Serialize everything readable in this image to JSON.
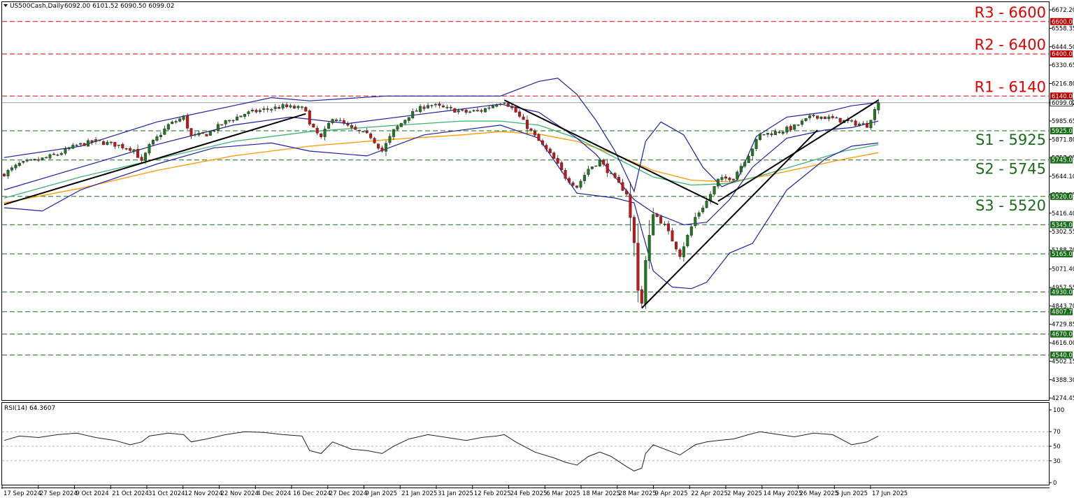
{
  "header": {
    "symbol": "US500Cash,Daily",
    "ohlc": "6092.00 6101.52 6090.50 6099.02"
  },
  "rsi_header": "RSI(14) 64.3607",
  "colors": {
    "resistance": "#e00000",
    "support": "#1a6b1a",
    "bollinger": "#1f1fa8",
    "ma_green": "#3cb371",
    "ma_orange": "#ff9900",
    "trendline": "#000000",
    "bull_candle": "#1e7a1e",
    "bear_candle": "#c81414",
    "price_tag": "#c00000"
  },
  "chart_data": [
    {
      "type": "candlestick",
      "title": "",
      "y_ticks": [
        "6672.20",
        "6558.35",
        "6444.50",
        "6330.65",
        "6216.80",
        "6099.02",
        "5985.65",
        "5871.80",
        "5757.95",
        "5644.10",
        "5530.25",
        "5416.40",
        "5302.55",
        "5188.70",
        "5071.40",
        "4957.55",
        "4843.70",
        "4729.85",
        "4616.00",
        "4502.15",
        "4388.30",
        "4274.45"
      ],
      "ylim": [
        4262,
        6720
      ],
      "x_ticks": [
        "17 Sep 2024",
        "27 Sep 2024",
        "9 Oct 2024",
        "21 Oct 2024",
        "31 Oct 2024",
        "12 Nov 2024",
        "22 Nov 2024",
        "4 Dec 2024",
        "16 Dec 2024",
        "27 Dec 2024",
        "9 Jan 2025",
        "21 Jan 2025",
        "31 Jan 2025",
        "12 Feb 2025",
        "24 Feb 2025",
        "6 Mar 2025",
        "18 Mar 2025",
        "28 Mar 2025",
        "9 Apr 2025",
        "22 Apr 2025",
        "2 May 2025",
        "14 May 2025",
        "26 May 2025",
        "5 Jun 2025",
        "17 Jun 2025"
      ],
      "price_path": [
        [
          0,
          5660
        ],
        [
          4,
          5720
        ],
        [
          9,
          5745
        ],
        [
          14,
          5780
        ],
        [
          19,
          5835
        ],
        [
          24,
          5860
        ],
        [
          29,
          5840
        ],
        [
          34,
          5810
        ],
        [
          36,
          5730
        ],
        [
          38,
          5830
        ],
        [
          43,
          5960
        ],
        [
          47,
          6010
        ],
        [
          49,
          5890
        ],
        [
          53,
          5905
        ],
        [
          58,
          5980
        ],
        [
          63,
          6030
        ],
        [
          68,
          6055
        ],
        [
          73,
          6075
        ],
        [
          79,
          6060
        ],
        [
          80,
          5960
        ],
        [
          83,
          5880
        ],
        [
          86,
          6010
        ],
        [
          91,
          5935
        ],
        [
          96,
          5890
        ],
        [
          99,
          5800
        ],
        [
          102,
          5925
        ],
        [
          106,
          6020
        ],
        [
          111,
          6090
        ],
        [
          116,
          6060
        ],
        [
          121,
          6040
        ],
        [
          125,
          6050
        ],
        [
          129,
          6095
        ],
        [
          131,
          6110
        ],
        [
          134,
          6040
        ],
        [
          139,
          5890
        ],
        [
          144,
          5750
        ],
        [
          147,
          5640
        ],
        [
          150,
          5580
        ],
        [
          153,
          5690
        ],
        [
          156,
          5740
        ],
        [
          159,
          5650
        ],
        [
          163,
          5540
        ],
        [
          165,
          5230
        ],
        [
          166,
          4950
        ],
        [
          167,
          4860
        ],
        [
          168,
          5120
        ],
        [
          170,
          5420
        ],
        [
          173,
          5340
        ],
        [
          177,
          5160
        ],
        [
          181,
          5390
        ],
        [
          184,
          5490
        ],
        [
          187,
          5620
        ],
        [
          191,
          5640
        ],
        [
          195,
          5780
        ],
        [
          198,
          5900
        ],
        [
          203,
          5920
        ],
        [
          207,
          5950
        ],
        [
          212,
          6020
        ],
        [
          217,
          6000
        ],
        [
          222,
          5975
        ],
        [
          226,
          5960
        ],
        [
          229,
          6099
        ]
      ],
      "support_levels": [
        {
          "label": "S1 - 5925",
          "tag": "5925.00",
          "value": 5925
        },
        {
          "label": "S2 - 5745",
          "tag": "5745.00",
          "value": 5745
        },
        {
          "label": "S3 - 5520",
          "tag": "5520.00",
          "value": 5520
        }
      ],
      "resistance_levels": [
        {
          "label": "R1 - 6140",
          "tag": "6140.00",
          "value": 6140
        },
        {
          "label": "R2 - 6400",
          "tag": "6400.00",
          "value": 6400
        },
        {
          "label": "R3 - 6600",
          "tag": "6600.00",
          "value": 6600
        }
      ],
      "other_levels": [
        {
          "tag": "5345.00",
          "value": 5345
        },
        {
          "tag": "5165.00",
          "value": 5165
        },
        {
          "tag": "4930.00",
          "value": 4930
        },
        {
          "tag": "4807.77",
          "value": 4807.77
        },
        {
          "tag": "4670.00",
          "value": 4670
        },
        {
          "tag": "4540.00",
          "value": 4540
        }
      ],
      "current_price": {
        "tag": "6099.02",
        "value": 6099.02
      },
      "bollinger_upper": [
        [
          0,
          5760
        ],
        [
          20,
          5830
        ],
        [
          40,
          5980
        ],
        [
          60,
          6080
        ],
        [
          70,
          6130
        ],
        [
          80,
          6110
        ],
        [
          100,
          6140
        ],
        [
          120,
          6140
        ],
        [
          130,
          6140
        ],
        [
          140,
          6230
        ],
        [
          145,
          6250
        ],
        [
          150,
          6150
        ],
        [
          155,
          5990
        ],
        [
          160,
          5800
        ],
        [
          165,
          5550
        ],
        [
          168,
          5860
        ],
        [
          172,
          5980
        ],
        [
          178,
          5900
        ],
        [
          183,
          5700
        ],
        [
          188,
          5580
        ],
        [
          192,
          5620
        ],
        [
          197,
          5890
        ],
        [
          205,
          6010
        ],
        [
          215,
          6040
        ],
        [
          222,
          6080
        ],
        [
          229,
          6100
        ]
      ],
      "bollinger_mid": [
        [
          0,
          5560
        ],
        [
          20,
          5700
        ],
        [
          40,
          5840
        ],
        [
          60,
          5960
        ],
        [
          75,
          6010
        ],
        [
          90,
          5970
        ],
        [
          110,
          6030
        ],
        [
          130,
          6090
        ],
        [
          140,
          6040
        ],
        [
          150,
          5880
        ],
        [
          155,
          5780
        ],
        [
          160,
          5640
        ],
        [
          165,
          5500
        ],
        [
          170,
          5420
        ],
        [
          178,
          5345
        ],
        [
          184,
          5360
        ],
        [
          190,
          5500
        ],
        [
          196,
          5700
        ],
        [
          205,
          5880
        ],
        [
          215,
          5930
        ],
        [
          222,
          5945
        ],
        [
          229,
          5985
        ]
      ],
      "bollinger_lower": [
        [
          0,
          5450
        ],
        [
          10,
          5430
        ],
        [
          20,
          5560
        ],
        [
          40,
          5720
        ],
        [
          55,
          5820
        ],
        [
          70,
          5850
        ],
        [
          80,
          5800
        ],
        [
          95,
          5770
        ],
        [
          110,
          5900
        ],
        [
          130,
          5960
        ],
        [
          140,
          5880
        ],
        [
          150,
          5540
        ],
        [
          160,
          5510
        ],
        [
          165,
          5480
        ],
        [
          170,
          5060
        ],
        [
          175,
          4960
        ],
        [
          180,
          4950
        ],
        [
          184,
          4990
        ],
        [
          190,
          5170
        ],
        [
          196,
          5230
        ],
        [
          205,
          5560
        ],
        [
          215,
          5750
        ],
        [
          222,
          5830
        ],
        [
          229,
          5850
        ]
      ],
      "ma_green": [
        [
          0,
          5510
        ],
        [
          20,
          5640
        ],
        [
          40,
          5750
        ],
        [
          60,
          5860
        ],
        [
          80,
          5920
        ],
        [
          100,
          5955
        ],
        [
          120,
          5985
        ],
        [
          130,
          5985
        ],
        [
          140,
          5960
        ],
        [
          150,
          5880
        ],
        [
          160,
          5760
        ],
        [
          170,
          5640
        ],
        [
          180,
          5590
        ],
        [
          190,
          5600
        ],
        [
          200,
          5660
        ],
        [
          210,
          5730
        ],
        [
          220,
          5800
        ],
        [
          229,
          5840
        ]
      ],
      "ma_orange": [
        [
          0,
          5480
        ],
        [
          20,
          5570
        ],
        [
          40,
          5680
        ],
        [
          60,
          5770
        ],
        [
          80,
          5830
        ],
        [
          100,
          5870
        ],
        [
          120,
          5900
        ],
        [
          130,
          5920
        ],
        [
          140,
          5905
        ],
        [
          150,
          5860
        ],
        [
          160,
          5780
        ],
        [
          170,
          5680
        ],
        [
          180,
          5620
        ],
        [
          190,
          5610
        ],
        [
          200,
          5650
        ],
        [
          210,
          5700
        ],
        [
          220,
          5750
        ],
        [
          229,
          5790
        ]
      ],
      "trendlines": [
        [
          [
            0,
            5470
          ],
          [
            79,
            6030
          ]
        ],
        [
          [
            131,
            6115
          ],
          [
            187,
            5470
          ]
        ],
        [
          [
            167,
            4830
          ],
          [
            213,
            5930
          ]
        ],
        [
          [
            187,
            5490
          ],
          [
            229,
            6115
          ]
        ]
      ],
      "rsi": {
        "label": "RSI(14) 64.3607",
        "y_ticks": [
          "100",
          "70",
          "50",
          "30",
          "0"
        ],
        "ylim": [
          0,
          100
        ],
        "levels": [
          70,
          50,
          30
        ],
        "points": [
          [
            0,
            58
          ],
          [
            4,
            64
          ],
          [
            9,
            62
          ],
          [
            14,
            66
          ],
          [
            19,
            68
          ],
          [
            24,
            62
          ],
          [
            29,
            58
          ],
          [
            33,
            52
          ],
          [
            36,
            56
          ],
          [
            38,
            64
          ],
          [
            43,
            68
          ],
          [
            47,
            66
          ],
          [
            49,
            56
          ],
          [
            53,
            60
          ],
          [
            58,
            66
          ],
          [
            63,
            70
          ],
          [
            68,
            69
          ],
          [
            73,
            66
          ],
          [
            78,
            64
          ],
          [
            80,
            44
          ],
          [
            83,
            40
          ],
          [
            86,
            56
          ],
          [
            91,
            46
          ],
          [
            95,
            44
          ],
          [
            99,
            40
          ],
          [
            102,
            50
          ],
          [
            106,
            60
          ],
          [
            111,
            66
          ],
          [
            116,
            62
          ],
          [
            121,
            58
          ],
          [
            125,
            62
          ],
          [
            129,
            64
          ],
          [
            131,
            66
          ],
          [
            134,
            56
          ],
          [
            139,
            42
          ],
          [
            144,
            34
          ],
          [
            147,
            28
          ],
          [
            150,
            24
          ],
          [
            153,
            36
          ],
          [
            156,
            42
          ],
          [
            159,
            36
          ],
          [
            163,
            22
          ],
          [
            165,
            16
          ],
          [
            167,
            20
          ],
          [
            168,
            40
          ],
          [
            170,
            52
          ],
          [
            173,
            46
          ],
          [
            177,
            38
          ],
          [
            181,
            52
          ],
          [
            184,
            56
          ],
          [
            187,
            58
          ],
          [
            191,
            60
          ],
          [
            195,
            66
          ],
          [
            198,
            70
          ],
          [
            203,
            66
          ],
          [
            207,
            63
          ],
          [
            212,
            68
          ],
          [
            217,
            66
          ],
          [
            222,
            52
          ],
          [
            226,
            56
          ],
          [
            229,
            64
          ]
        ]
      }
    }
  ]
}
